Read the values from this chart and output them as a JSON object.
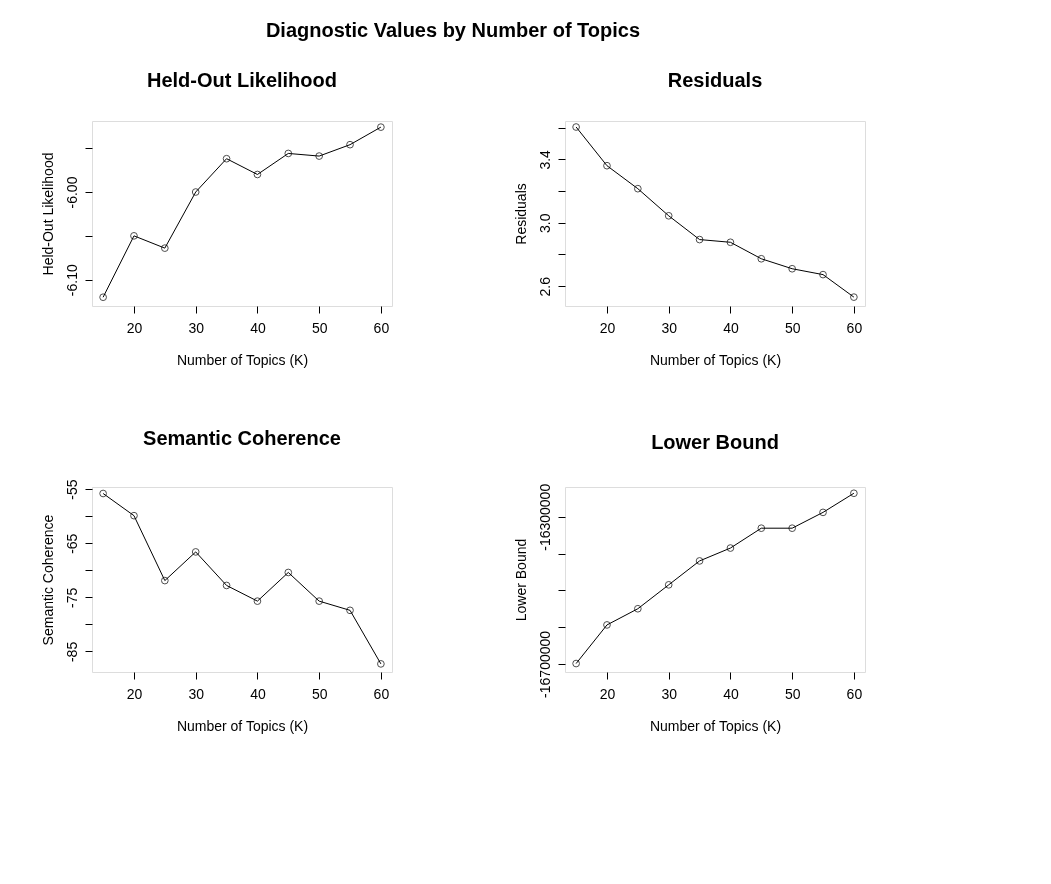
{
  "chart_data": [
    {
      "type": "line",
      "title": "Held-Out Likelihood",
      "annotations": [
        "Diagnostic Values by Number of Topics"
      ],
      "xlabel": "Number of Topics (K)",
      "ylabel": "Held-Out Likelihood",
      "x": [
        15,
        20,
        25,
        30,
        35,
        40,
        45,
        50,
        55,
        60
      ],
      "series": [
        {
          "color": "#000000",
          "values": [
            -6.12,
            -6.05,
            -6.064,
            -6.0,
            -5.962,
            -5.98,
            -5.956,
            -5.959,
            -5.946,
            -5.926
          ]
        }
      ],
      "xlim": [
        13.2,
        61.8
      ],
      "xticks": [
        20,
        30,
        40,
        50,
        60
      ],
      "ylim": [
        -6.13,
        -5.919
      ],
      "yticks": [
        {
          "value": -6.1,
          "label": "-6.10"
        },
        {
          "value": -6.05,
          "label": null
        },
        {
          "value": -6.0,
          "label": "-6.00"
        },
        {
          "value": -5.95,
          "label": null
        }
      ],
      "grid": false,
      "marker": "circle",
      "line_style": "solid"
    },
    {
      "type": "line",
      "title": "Residuals",
      "xlabel": "Number of Topics (K)",
      "ylabel": "Residuals",
      "x": [
        15,
        20,
        25,
        30,
        35,
        40,
        45,
        50,
        55,
        60
      ],
      "series": [
        {
          "color": "#000000",
          "values": [
            3.604,
            3.36,
            3.215,
            3.044,
            2.894,
            2.877,
            2.773,
            2.71,
            2.673,
            2.531
          ]
        }
      ],
      "xlim": [
        13.2,
        61.8
      ],
      "xticks": [
        20,
        30,
        40,
        50,
        60
      ],
      "ylim": [
        2.475,
        3.642
      ],
      "yticks": [
        {
          "value": 2.6,
          "label": "2.6"
        },
        {
          "value": 2.8,
          "label": null
        },
        {
          "value": 3.0,
          "label": "3.0"
        },
        {
          "value": 3.2,
          "label": null
        },
        {
          "value": 3.4,
          "label": "3.4"
        },
        {
          "value": 3.6,
          "label": null
        }
      ],
      "grid": false,
      "marker": "circle",
      "line_style": "solid"
    },
    {
      "type": "line",
      "title": "Semantic Coherence",
      "xlabel": "Number of Topics (K)",
      "ylabel": "Semantic Coherence",
      "x": [
        15,
        20,
        25,
        30,
        35,
        40,
        45,
        50,
        55,
        60
      ],
      "series": [
        {
          "color": "#000000",
          "values": [
            -55.8,
            -59.9,
            -71.9,
            -66.6,
            -72.8,
            -75.7,
            -70.4,
            -75.7,
            -77.4,
            -87.3
          ]
        }
      ],
      "xlim": [
        13.2,
        61.8
      ],
      "xticks": [
        20,
        30,
        40,
        50,
        60
      ],
      "ylim": [
        -88.8,
        -54.6
      ],
      "yticks": [
        -85,
        {
          "value": -80,
          "label": null
        },
        -75,
        {
          "value": -70,
          "label": null
        },
        -65,
        {
          "value": -60,
          "label": null
        },
        -55
      ],
      "grid": false,
      "marker": "circle",
      "line_style": "solid"
    },
    {
      "type": "line",
      "title": "Lower Bound",
      "xlabel": "Number of Topics (K)",
      "ylabel": "Lower Bound",
      "x": [
        15,
        20,
        25,
        30,
        35,
        40,
        45,
        50,
        55,
        60
      ],
      "series": [
        {
          "color": "#000000",
          "values": [
            -16699000,
            -16594000,
            -16550000,
            -16485000,
            -16420000,
            -16385000,
            -16331000,
            -16331000,
            -16288000,
            -16236000
          ]
        }
      ],
      "xlim": [
        13.2,
        61.8
      ],
      "xticks": [
        20,
        30,
        40,
        50,
        60
      ],
      "ylim": [
        -16722000,
        -16219000
      ],
      "yticks": [
        -16700000,
        {
          "value": -16600000,
          "label": null
        },
        {
          "value": -16500000,
          "label": null
        },
        {
          "value": -16400000,
          "label": null
        },
        -16300000
      ],
      "grid": false,
      "marker": "circle",
      "line_style": "solid"
    }
  ]
}
